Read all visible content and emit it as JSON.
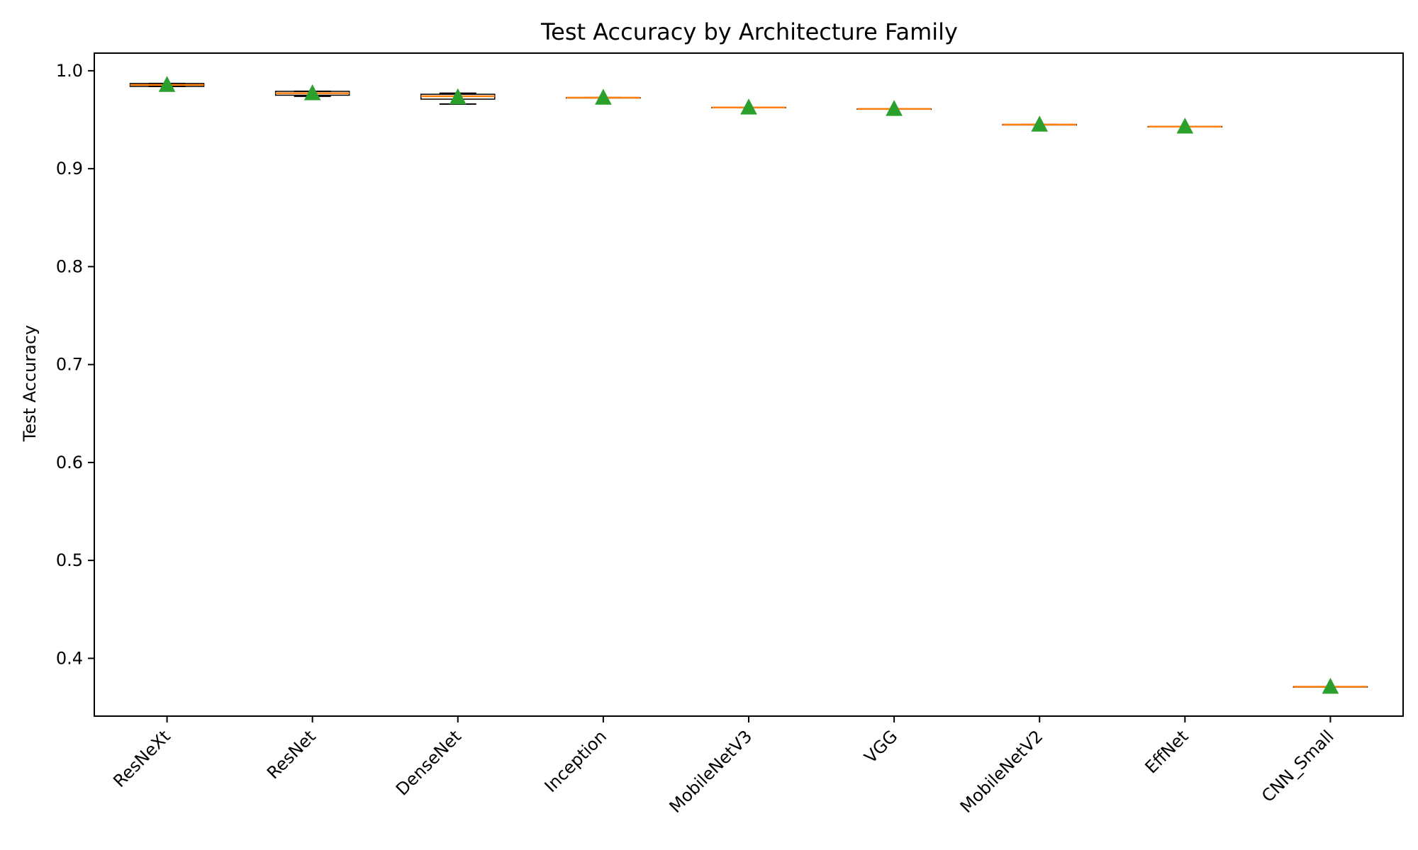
{
  "chart_data": {
    "type": "box",
    "title": "Test Accuracy by Architecture Family",
    "xlabel": "",
    "ylabel": "Test Accuracy",
    "ylim": [
      0.341,
      1.018
    ],
    "yticks": [
      "0.4",
      "0.5",
      "0.6",
      "0.7",
      "0.8",
      "0.9",
      "1.0"
    ],
    "grid": false,
    "colors": {
      "median": "#ff7f0e",
      "mean_marker": "#2ca02c",
      "box": "#000000"
    },
    "categories": [
      "ResNeXt",
      "ResNet",
      "DenseNet",
      "Inception",
      "MobileNetV3",
      "VGG",
      "MobileNetV2",
      "EffNet",
      "CNN_Small"
    ],
    "boxes": [
      {
        "category": "ResNeXt",
        "whisker_low": 0.984,
        "q1": 0.984,
        "median": 0.9855,
        "q3": 0.987,
        "whisker_high": 0.987,
        "mean": 0.9855
      },
      {
        "category": "ResNet",
        "whisker_low": 0.974,
        "q1": 0.975,
        "median": 0.977,
        "q3": 0.979,
        "whisker_high": 0.979,
        "mean": 0.977
      },
      {
        "category": "DenseNet",
        "whisker_low": 0.966,
        "q1": 0.971,
        "median": 0.974,
        "q3": 0.976,
        "whisker_high": 0.977,
        "mean": 0.973
      },
      {
        "category": "Inception",
        "whisker_low": 0.9725,
        "q1": 0.9725,
        "median": 0.9725,
        "q3": 0.9725,
        "whisker_high": 0.9725,
        "mean": 0.9725
      },
      {
        "category": "MobileNetV3",
        "whisker_low": 0.9625,
        "q1": 0.9625,
        "median": 0.9625,
        "q3": 0.9625,
        "whisker_high": 0.9625,
        "mean": 0.9625
      },
      {
        "category": "VGG",
        "whisker_low": 0.961,
        "q1": 0.961,
        "median": 0.961,
        "q3": 0.961,
        "whisker_high": 0.961,
        "mean": 0.961
      },
      {
        "category": "MobileNetV2",
        "whisker_low": 0.945,
        "q1": 0.945,
        "median": 0.945,
        "q3": 0.945,
        "whisker_high": 0.945,
        "mean": 0.945
      },
      {
        "category": "EffNet",
        "whisker_low": 0.943,
        "q1": 0.943,
        "median": 0.943,
        "q3": 0.943,
        "whisker_high": 0.943,
        "mean": 0.943
      },
      {
        "category": "CNN_Small",
        "whisker_low": 0.371,
        "q1": 0.371,
        "median": 0.371,
        "q3": 0.371,
        "whisker_high": 0.371,
        "mean": 0.371
      }
    ]
  }
}
